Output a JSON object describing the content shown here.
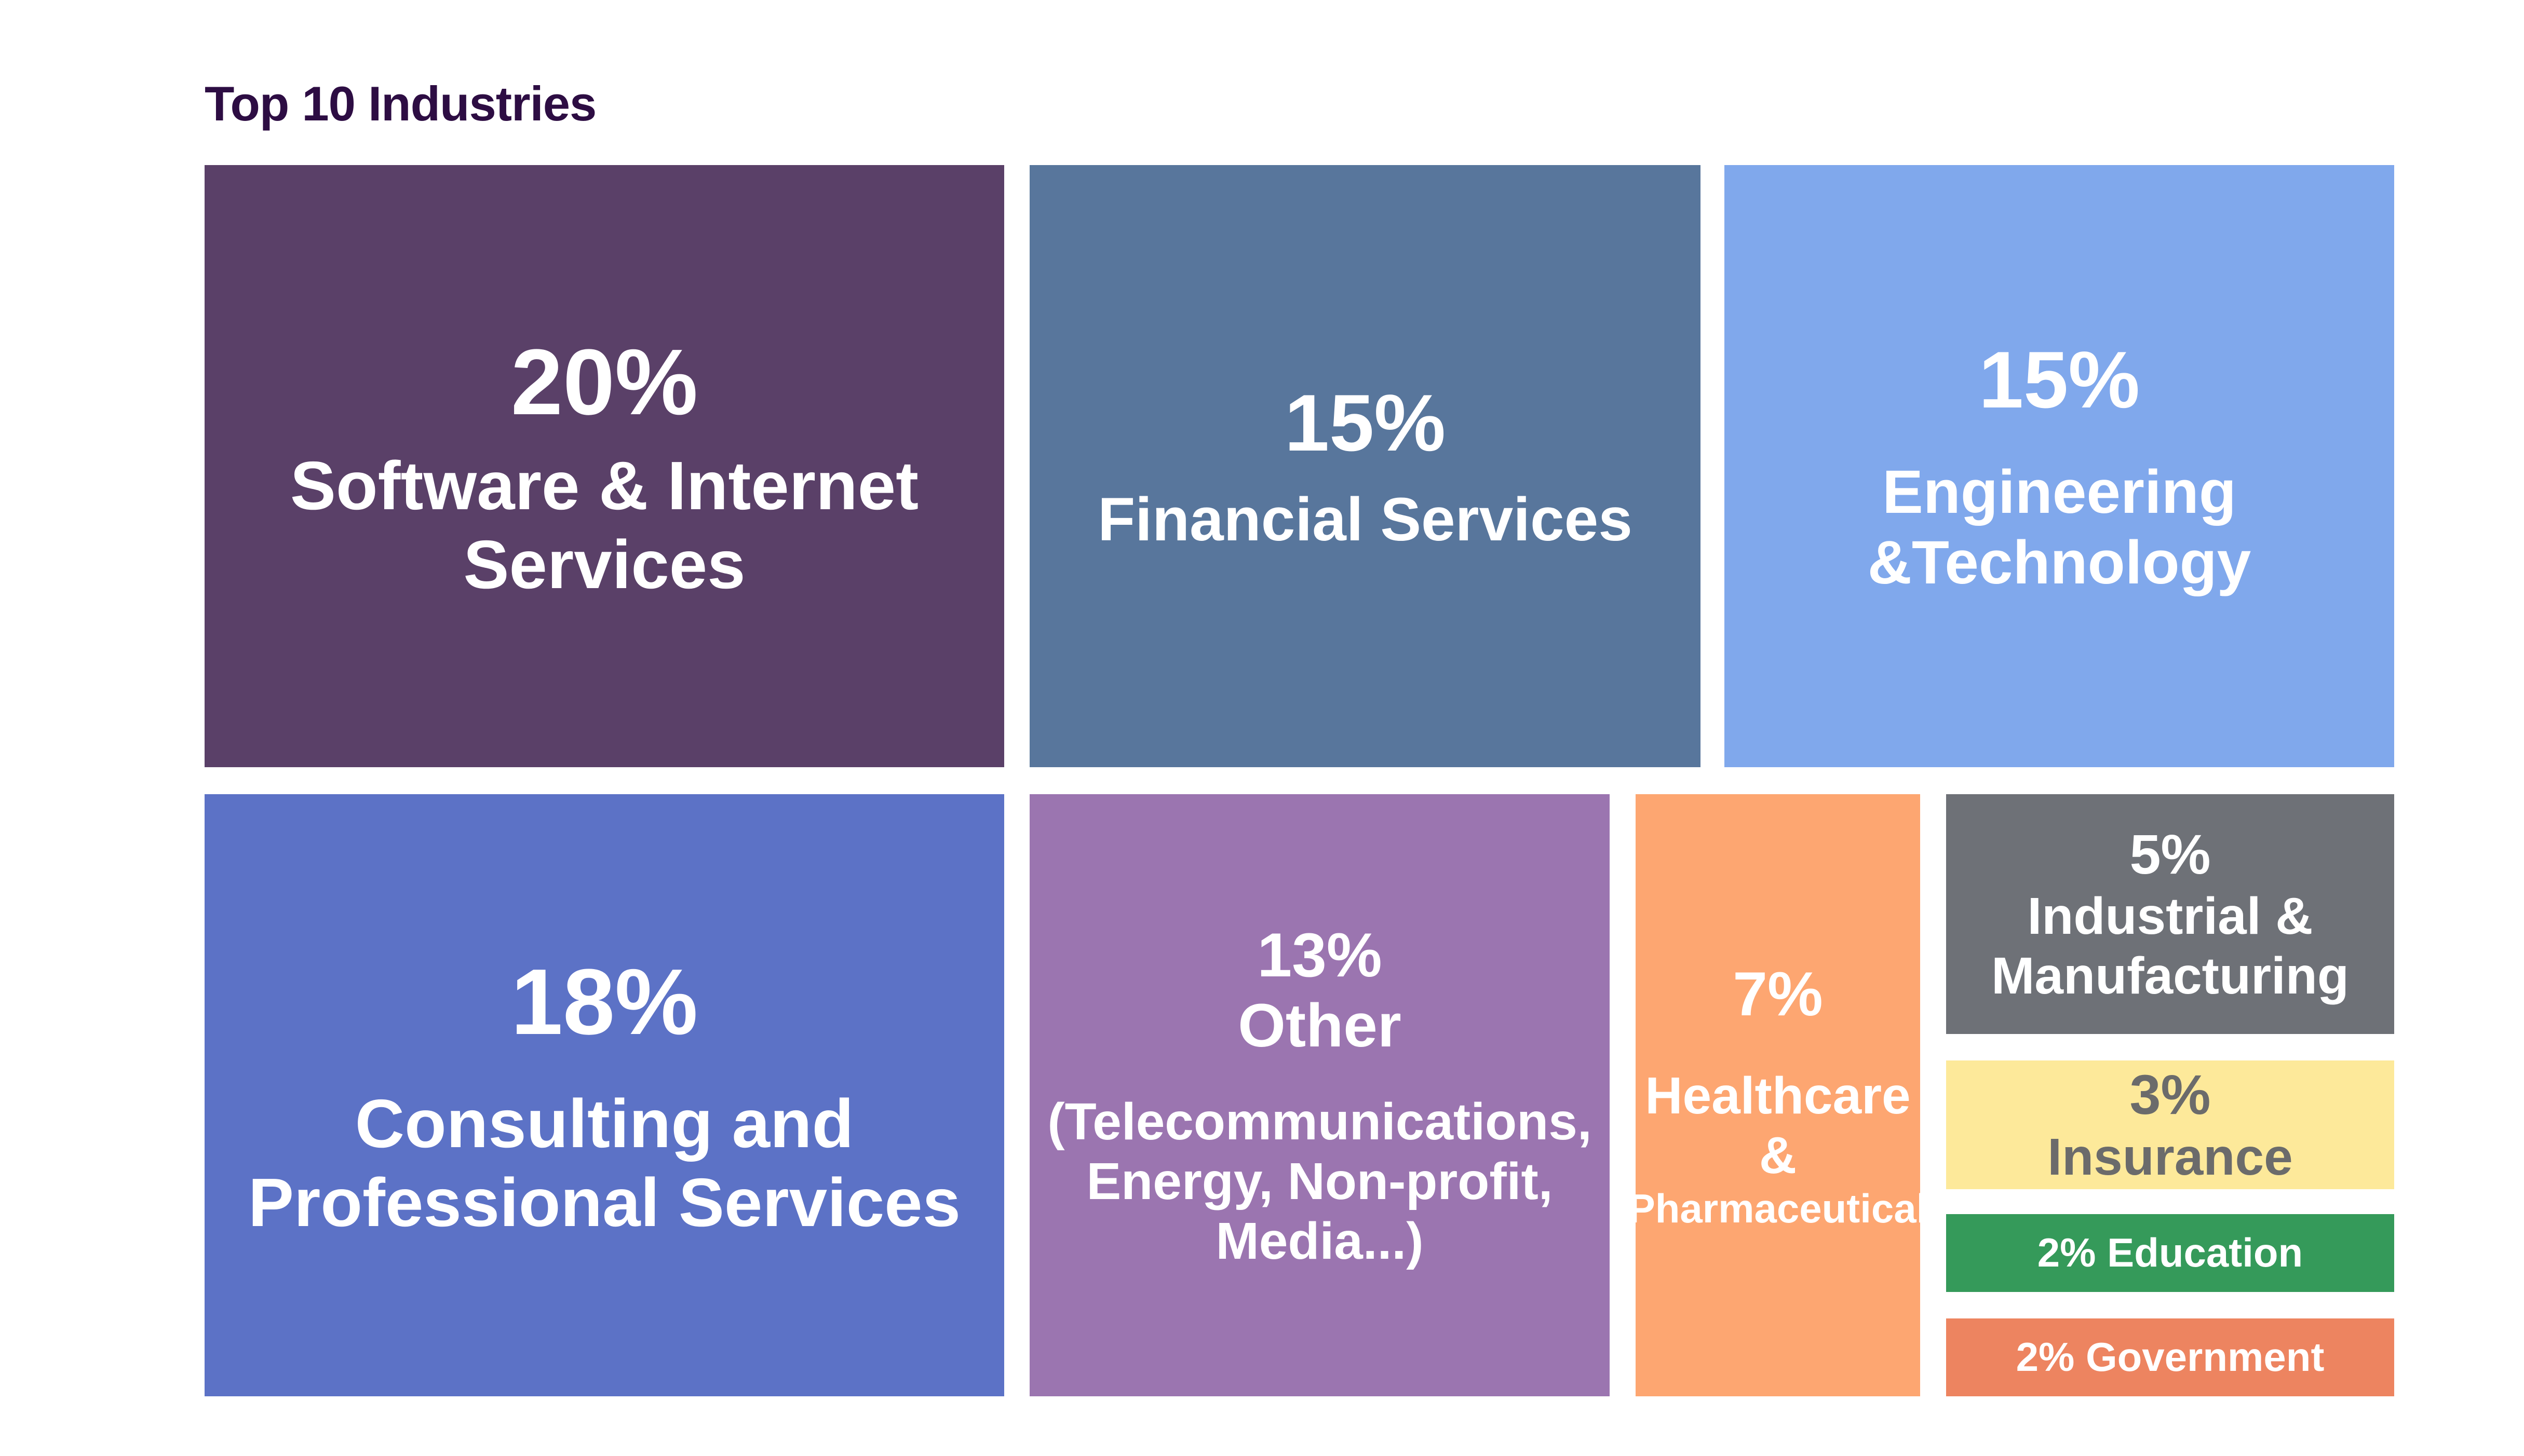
{
  "chart_data": {
    "type": "treemap",
    "title": "Top 10 Industries",
    "tiles": [
      {
        "key": "software",
        "percent": "20%",
        "value": 20,
        "label_lines": [
          "Software & Internet",
          "Services"
        ],
        "color": "#5a4068"
      },
      {
        "key": "financial",
        "percent": "15%",
        "value": 15,
        "label_lines": [
          "Financial Services"
        ],
        "color": "#58769c"
      },
      {
        "key": "engineering",
        "percent": "15%",
        "value": 15,
        "label_lines": [
          "Engineering",
          "&Technology"
        ],
        "color": "#80a8ec"
      },
      {
        "key": "consulting",
        "percent": "18%",
        "value": 18,
        "label_lines": [
          "Consulting and",
          "Professional Services"
        ],
        "color": "#5c72c6"
      },
      {
        "key": "other",
        "percent": "13%",
        "value": 13,
        "label_lines": [
          "Other"
        ],
        "detail_lines": [
          "(Telecommunications,",
          "Energy, Non-profit,",
          "Media...)"
        ],
        "color": "#9b75b0"
      },
      {
        "key": "healthcare",
        "percent": "7%",
        "value": 7,
        "label_lines": [
          "Healthcare",
          "&",
          "Pharmaceutical"
        ],
        "color": "#fda671"
      },
      {
        "key": "industrial",
        "percent": "5%",
        "value": 5,
        "label_lines": [
          "Industrial &",
          "Manufacturing"
        ],
        "color": "#6e7177"
      },
      {
        "key": "insurance",
        "percent": "3%",
        "value": 3,
        "label_lines": [
          "Insurance"
        ],
        "color": "#fde99a"
      },
      {
        "key": "education",
        "text": "2% Education",
        "value": 2,
        "color": "#359a5a"
      },
      {
        "key": "government",
        "text": "2% Government",
        "value": 2,
        "color": "#ed8460"
      }
    ]
  }
}
